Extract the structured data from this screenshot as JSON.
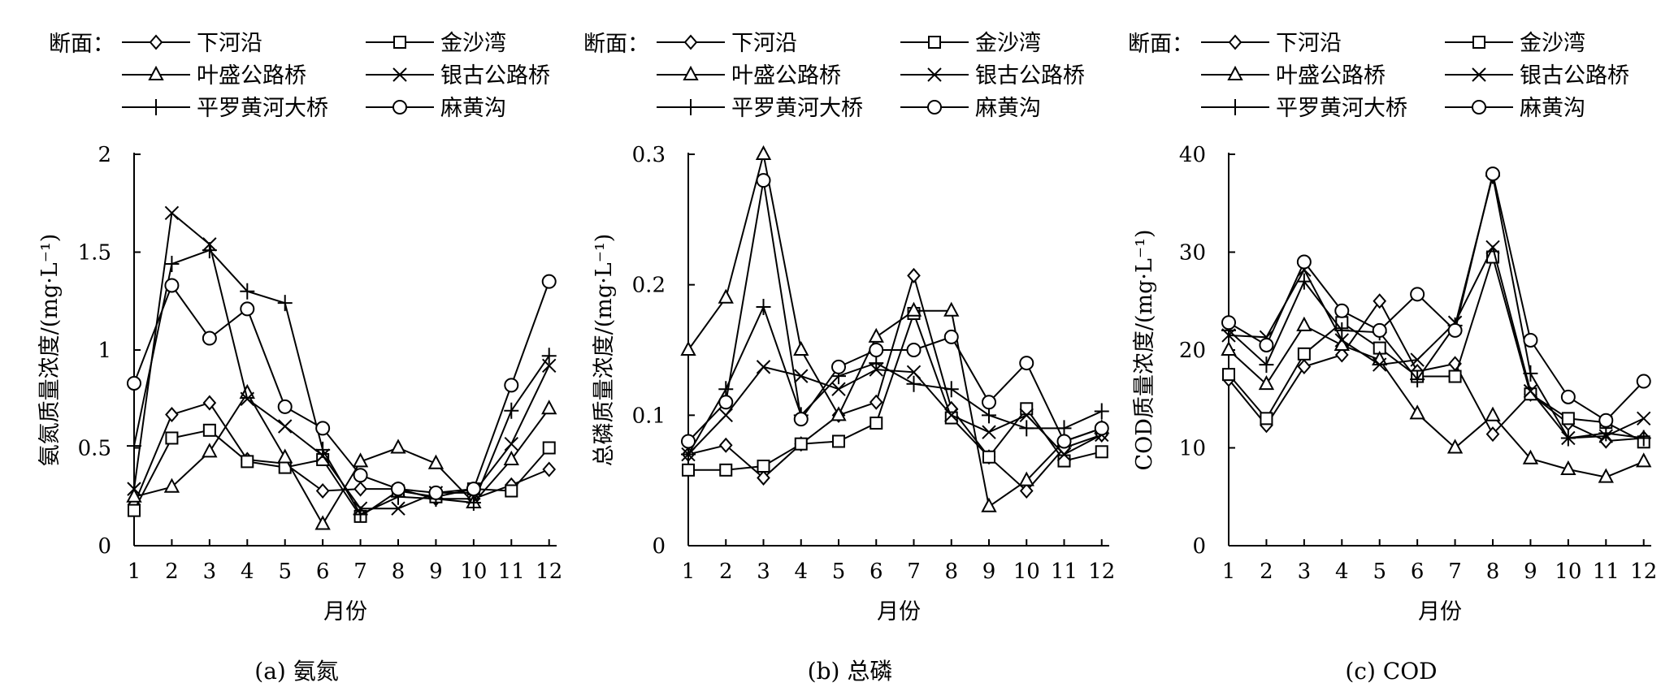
{
  "legend_prefix": "断面：",
  "series_names": [
    "下河沿",
    "金沙湾",
    "叶盛公路桥",
    "银古公路桥",
    "平罗黄河大桥",
    "麻黄沟"
  ],
  "markers": [
    "diamond",
    "square",
    "triangle",
    "cross",
    "plus",
    "circle"
  ],
  "chart_data": [
    {
      "type": "line",
      "caption": "(a) 氨氮",
      "xlabel": "月份",
      "ylabel": "氨氮质量浓度/(mg·L⁻¹)",
      "x": [
        1,
        2,
        3,
        4,
        5,
        6,
        7,
        8,
        9,
        10,
        11,
        12
      ],
      "ylim": [
        0,
        2
      ],
      "yticks": [
        0,
        0.5,
        1,
        1.5,
        2
      ],
      "ytick_labels": [
        "0",
        "0.5",
        "1",
        "1.5",
        "2"
      ],
      "series": [
        {
          "name": "下河沿",
          "values": [
            0.21,
            0.67,
            0.73,
            0.44,
            0.42,
            0.28,
            0.29,
            0.29,
            0.24,
            0.24,
            0.31,
            0.39
          ]
        },
        {
          "name": "金沙湾",
          "values": [
            0.18,
            0.55,
            0.59,
            0.43,
            0.4,
            0.44,
            0.15,
            0.28,
            0.25,
            0.29,
            0.28,
            0.5
          ]
        },
        {
          "name": "叶盛公路桥",
          "values": [
            0.25,
            0.3,
            0.48,
            0.78,
            0.45,
            0.11,
            0.43,
            0.5,
            0.42,
            0.22,
            0.44,
            0.7
          ]
        },
        {
          "name": "银古公路桥",
          "values": [
            0.29,
            1.7,
            1.54,
            0.75,
            0.61,
            0.46,
            0.19,
            0.19,
            0.27,
            0.27,
            0.52,
            0.92
          ]
        },
        {
          "name": "平罗黄河大桥",
          "values": [
            0.51,
            1.44,
            1.51,
            1.3,
            1.24,
            0.49,
            0.16,
            0.25,
            0.24,
            0.22,
            0.69,
            0.97
          ]
        },
        {
          "name": "麻黄沟",
          "values": [
            0.83,
            1.33,
            1.06,
            1.21,
            0.71,
            0.6,
            0.36,
            0.29,
            0.27,
            0.29,
            0.82,
            1.35
          ]
        }
      ]
    },
    {
      "type": "line",
      "caption": "(b) 总磷",
      "xlabel": "月份",
      "ylabel": "总磷质量浓度/(mg·L⁻¹)",
      "x": [
        1,
        2,
        3,
        4,
        5,
        6,
        7,
        8,
        9,
        10,
        11,
        12
      ],
      "ylim": [
        0,
        0.3
      ],
      "yticks": [
        0,
        0.1,
        0.2,
        0.3
      ],
      "ytick_labels": [
        "0",
        "0.1",
        "0.2",
        "0.3"
      ],
      "series": [
        {
          "name": "下河沿",
          "values": [
            0.07,
            0.077,
            0.052,
            0.078,
            0.1,
            0.11,
            0.207,
            0.105,
            0.068,
            0.042,
            0.075,
            0.085
          ]
        },
        {
          "name": "金沙湾",
          "values": [
            0.058,
            0.058,
            0.061,
            0.078,
            0.08,
            0.094,
            0.178,
            0.098,
            0.068,
            0.105,
            0.065,
            0.072
          ]
        },
        {
          "name": "叶盛公路桥",
          "values": [
            0.15,
            0.19,
            0.3,
            0.15,
            0.1,
            0.16,
            0.18,
            0.18,
            0.03,
            0.05,
            0.08,
            0.09
          ]
        },
        {
          "name": "银古公路桥",
          "values": [
            0.07,
            0.1,
            0.137,
            0.13,
            0.12,
            0.135,
            0.133,
            0.1,
            0.087,
            0.1,
            0.07,
            0.085
          ]
        },
        {
          "name": "平罗黄河大桥",
          "values": [
            0.07,
            0.12,
            0.183,
            0.1,
            0.13,
            0.14,
            0.124,
            0.12,
            0.1,
            0.09,
            0.09,
            0.103
          ]
        },
        {
          "name": "麻黄沟",
          "values": [
            0.08,
            0.11,
            0.28,
            0.097,
            0.137,
            0.15,
            0.15,
            0.16,
            0.11,
            0.14,
            0.08,
            0.09
          ]
        }
      ]
    },
    {
      "type": "line",
      "caption": "(c) COD",
      "xlabel": "月份",
      "ylabel": "COD质量浓度/(mg·L⁻¹)",
      "x": [
        1,
        2,
        3,
        4,
        5,
        6,
        7,
        8,
        9,
        10,
        11,
        12
      ],
      "ylim": [
        0,
        40
      ],
      "yticks": [
        0,
        10,
        20,
        30,
        40
      ],
      "ytick_labels": [
        "0",
        "10",
        "20",
        "30",
        "40"
      ],
      "series": [
        {
          "name": "下河沿",
          "values": [
            17.0,
            12.3,
            18.3,
            19.5,
            25.0,
            17.8,
            18.6,
            11.4,
            15.5,
            12.5,
            10.7,
            11.0
          ]
        },
        {
          "name": "金沙湾",
          "values": [
            17.5,
            13.0,
            19.6,
            22.8,
            20.2,
            17.3,
            17.3,
            29.5,
            15.5,
            13.0,
            12.6,
            10.6
          ]
        },
        {
          "name": "叶盛公路桥",
          "values": [
            20.0,
            16.5,
            22.5,
            20.5,
            19.0,
            13.5,
            10.0,
            13.3,
            8.9,
            7.8,
            7.0,
            8.6
          ]
        },
        {
          "name": "银古公路桥",
          "values": [
            21.5,
            21.3,
            28.2,
            21.0,
            18.5,
            19.0,
            22.8,
            30.5,
            15.8,
            11.0,
            11.2,
            13.0
          ]
        },
        {
          "name": "平罗黄河大桥",
          "values": [
            22.0,
            18.5,
            27.0,
            22.0,
            21.8,
            17.0,
            22.5,
            37.8,
            17.6,
            11.0,
            11.5,
            11.0
          ]
        },
        {
          "name": "麻黄沟",
          "values": [
            22.8,
            20.5,
            29.0,
            24.0,
            22.0,
            25.7,
            22.0,
            38.0,
            21.0,
            15.2,
            12.8,
            16.8
          ]
        }
      ]
    }
  ]
}
